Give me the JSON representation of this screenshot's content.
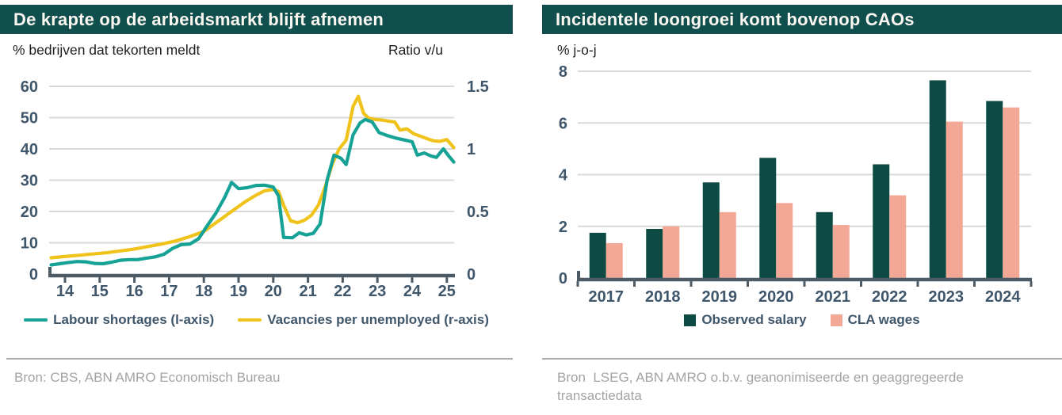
{
  "colors": {
    "header_bg": "#104f4e",
    "header_text": "#fbf8f1",
    "tick_text": "#3f566b",
    "axis_line": "#4d5b66",
    "gridline": "#d9d9d9",
    "source_text": "#a3a3a1",
    "teal_line": "#16a295",
    "yellow_line": "#f0c31c",
    "dark_bar": "#0d4a43",
    "salmon_bar": "#f3a795"
  },
  "chart_data": [
    {
      "type": "line",
      "title": "De krapte op de arbeidsmarkt blijft afnemen",
      "y_left_label": "% bedrijven dat tekorten meldt",
      "y_right_label": "Ratio v/u",
      "source": "Bron: CBS, ABN AMRO Economisch Bureau",
      "x_tick_labels": [
        "14",
        "15",
        "16",
        "17",
        "18",
        "19",
        "20",
        "21",
        "22",
        "23",
        "24",
        "25"
      ],
      "y_left": {
        "ticks": [
          0,
          10,
          20,
          30,
          40,
          50,
          60
        ],
        "lim": [
          0,
          60
        ]
      },
      "y_right": {
        "ticks": [
          "0",
          "0.5",
          "1",
          "1.5"
        ],
        "lim": [
          0,
          1.5
        ]
      },
      "grid": "horizontal",
      "legend_position": "bottom",
      "series": [
        {
          "name": "Labour shortages (l-axis)",
          "axis": "left",
          "color": "#16a295",
          "points": [
            [
              2013.6,
              2.9
            ],
            [
              2013.85,
              3.3
            ],
            [
              2014.1,
              3.7
            ],
            [
              2014.35,
              4.0
            ],
            [
              2014.6,
              3.9
            ],
            [
              2014.85,
              3.4
            ],
            [
              2015.1,
              3.3
            ],
            [
              2015.35,
              3.8
            ],
            [
              2015.6,
              4.4
            ],
            [
              2015.85,
              4.6
            ],
            [
              2016.1,
              4.6
            ],
            [
              2016.35,
              5.1
            ],
            [
              2016.6,
              5.5
            ],
            [
              2016.85,
              6.3
            ],
            [
              2017.1,
              8.2
            ],
            [
              2017.35,
              9.4
            ],
            [
              2017.6,
              9.6
            ],
            [
              2017.85,
              11.3
            ],
            [
              2018.1,
              15.5
            ],
            [
              2018.35,
              19.5
            ],
            [
              2018.6,
              24.5
            ],
            [
              2018.8,
              29.3
            ],
            [
              2019.0,
              27.3
            ],
            [
              2019.25,
              27.6
            ],
            [
              2019.5,
              28.3
            ],
            [
              2019.75,
              28.4
            ],
            [
              2020.0,
              27.8
            ],
            [
              2020.15,
              25.0
            ],
            [
              2020.3,
              11.7
            ],
            [
              2020.55,
              11.6
            ],
            [
              2020.75,
              13.2
            ],
            [
              2020.95,
              12.5
            ],
            [
              2021.15,
              13.0
            ],
            [
              2021.35,
              16.0
            ],
            [
              2021.55,
              30.0
            ],
            [
              2021.75,
              38.0
            ],
            [
              2021.95,
              37.0
            ],
            [
              2022.1,
              35.0
            ],
            [
              2022.3,
              44.5
            ],
            [
              2022.5,
              48.3
            ],
            [
              2022.65,
              49.4
            ],
            [
              2022.85,
              48.6
            ],
            [
              2023.05,
              45.2
            ],
            [
              2023.3,
              44.2
            ],
            [
              2023.55,
              43.4
            ],
            [
              2023.8,
              42.8
            ],
            [
              2024.0,
              42.3
            ],
            [
              2024.15,
              38.0
            ],
            [
              2024.35,
              38.7
            ],
            [
              2024.55,
              37.7
            ],
            [
              2024.7,
              37.3
            ],
            [
              2024.9,
              40.0
            ],
            [
              2025.05,
              37.8
            ],
            [
              2025.2,
              35.8
            ]
          ]
        },
        {
          "name": "Vacancies per unemployed (r-axis)",
          "axis": "right",
          "color": "#f0c31c",
          "points": [
            [
              2013.6,
              0.13
            ],
            [
              2014.0,
              0.14
            ],
            [
              2014.4,
              0.15
            ],
            [
              2014.8,
              0.16
            ],
            [
              2015.2,
              0.17
            ],
            [
              2015.6,
              0.185
            ],
            [
              2016.0,
              0.2
            ],
            [
              2016.4,
              0.22
            ],
            [
              2016.8,
              0.24
            ],
            [
              2017.2,
              0.265
            ],
            [
              2017.6,
              0.3
            ],
            [
              2018.0,
              0.34
            ],
            [
              2018.3,
              0.4
            ],
            [
              2018.6,
              0.46
            ],
            [
              2018.9,
              0.52
            ],
            [
              2019.2,
              0.58
            ],
            [
              2019.5,
              0.63
            ],
            [
              2019.75,
              0.665
            ],
            [
              2020.0,
              0.675
            ],
            [
              2020.15,
              0.66
            ],
            [
              2020.3,
              0.55
            ],
            [
              2020.5,
              0.425
            ],
            [
              2020.7,
              0.41
            ],
            [
              2020.9,
              0.43
            ],
            [
              2021.1,
              0.47
            ],
            [
              2021.3,
              0.55
            ],
            [
              2021.5,
              0.7
            ],
            [
              2021.7,
              0.88
            ],
            [
              2021.9,
              1.0
            ],
            [
              2022.1,
              1.07
            ],
            [
              2022.3,
              1.34
            ],
            [
              2022.45,
              1.42
            ],
            [
              2022.6,
              1.285
            ],
            [
              2022.75,
              1.245
            ],
            [
              2022.95,
              1.235
            ],
            [
              2023.15,
              1.23
            ],
            [
              2023.35,
              1.22
            ],
            [
              2023.5,
              1.215
            ],
            [
              2023.65,
              1.15
            ],
            [
              2023.85,
              1.16
            ],
            [
              2024.05,
              1.12
            ],
            [
              2024.25,
              1.1
            ],
            [
              2024.45,
              1.08
            ],
            [
              2024.6,
              1.065
            ],
            [
              2024.8,
              1.06
            ],
            [
              2025.0,
              1.075
            ],
            [
              2025.2,
              1.01
            ]
          ]
        }
      ]
    },
    {
      "type": "bar",
      "title": "Incidentele loongroei komt bovenop CAOs",
      "ylabel": "% j-o-j",
      "source": "Bron  LSEG, ABN AMRO o.b.v. geanonimiseerde en geaggregeerde transactiedata",
      "categories": [
        "2017",
        "2018",
        "2019",
        "2020",
        "2021",
        "2022",
        "2023",
        "2024"
      ],
      "y": {
        "ticks": [
          0,
          2,
          4,
          6,
          8
        ],
        "lim": [
          0,
          8
        ]
      },
      "grid": "horizontal",
      "legend_position": "bottom",
      "series": [
        {
          "name": "Observed salary",
          "color": "#0d4a43",
          "values": [
            1.75,
            1.9,
            3.7,
            4.65,
            2.55,
            4.4,
            7.65,
            6.85
          ]
        },
        {
          "name": "CLA wages",
          "color": "#f3a795",
          "values": [
            1.35,
            2.0,
            2.55,
            2.9,
            2.05,
            3.2,
            6.05,
            6.6
          ]
        }
      ]
    }
  ]
}
